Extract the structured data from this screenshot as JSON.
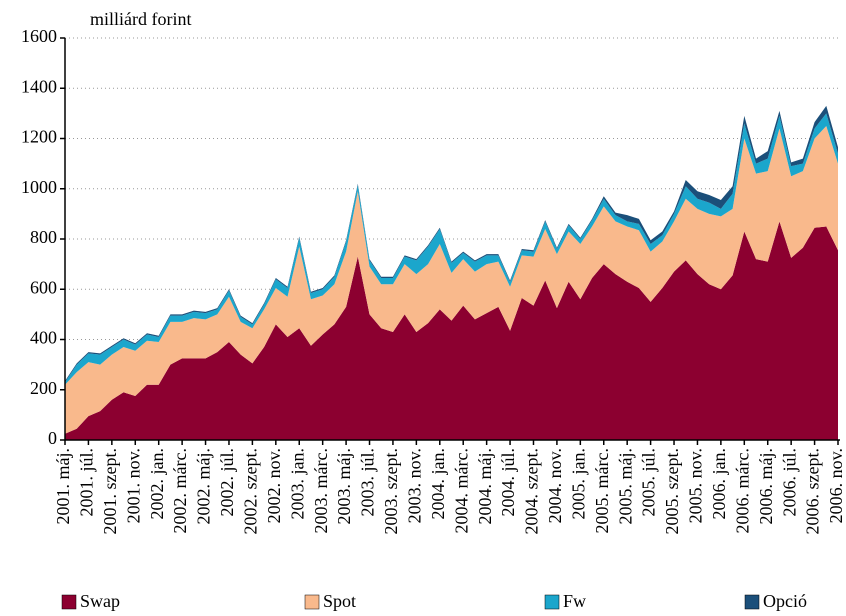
{
  "chart_data": {
    "type": "stacked_area",
    "y_axis_label": "milliárd forint",
    "categories": [
      "2001. máj.",
      null,
      "2001. júl.",
      null,
      "2001. szept.",
      null,
      "2001. nov.",
      null,
      "2002. jan.",
      null,
      "2002. márc.",
      null,
      "2002. máj.",
      null,
      "2002. júl.",
      null,
      "2002. szept.",
      null,
      "2002. nov.",
      null,
      "2003. jan.",
      null,
      "2003. márc.",
      null,
      "2003. máj.",
      null,
      "2003. júl.",
      null,
      "2003. szept.",
      null,
      "2003. nov.",
      null,
      "2004. jan.",
      null,
      "2004. márc.",
      null,
      "2004. máj.",
      null,
      "2004. júl.",
      null,
      "2004. szept.",
      null,
      "2004. nov.",
      null,
      "2005. jan.",
      null,
      "2005. márc.",
      null,
      "2005. máj.",
      null,
      "2005. júl.",
      null,
      "2005. szept.",
      null,
      "2005. nov.",
      null,
      "2006. jan.",
      null,
      "2006. márc.",
      null,
      "2006. máj.",
      null,
      "2006. júl.",
      null,
      "2006. szept.",
      null,
      "2006. nov."
    ],
    "series": [
      {
        "name": "Swap",
        "color": "#8c0030",
        "values": [
          25,
          45,
          95,
          115,
          160,
          190,
          175,
          220,
          220,
          300,
          325,
          325,
          325,
          350,
          390,
          340,
          305,
          370,
          460,
          410,
          445,
          375,
          420,
          460,
          530,
          730,
          500,
          445,
          430,
          500,
          430,
          465,
          520,
          475,
          535,
          480,
          505,
          530,
          435,
          565,
          535,
          635,
          525,
          630,
          560,
          645,
          700,
          660,
          630,
          605,
          550,
          605,
          670,
          715,
          660,
          620,
          600,
          655,
          830,
          720,
          710,
          870,
          725,
          765,
          845,
          850,
          755
        ]
      },
      {
        "name": "Spot",
        "color": "#f9b98c",
        "values": [
          195,
          225,
          215,
          185,
          180,
          180,
          180,
          175,
          170,
          170,
          145,
          160,
          155,
          150,
          180,
          130,
          140,
          150,
          145,
          160,
          325,
          185,
          155,
          160,
          220,
          260,
          190,
          175,
          190,
          200,
          230,
          235,
          260,
          190,
          185,
          190,
          195,
          180,
          175,
          170,
          195,
          205,
          215,
          200,
          220,
          205,
          230,
          210,
          220,
          230,
          200,
          185,
          200,
          245,
          260,
          280,
          290,
          265,
          370,
          340,
          360,
          370,
          325,
          305,
          355,
          400,
          345
        ]
      },
      {
        "name": "Fw",
        "color": "#1ba6cc",
        "values": [
          10,
          30,
          35,
          40,
          30,
          30,
          25,
          25,
          20,
          25,
          25,
          25,
          25,
          20,
          25,
          20,
          15,
          20,
          35,
          35,
          35,
          25,
          25,
          30,
          40,
          25,
          25,
          25,
          25,
          30,
          55,
          70,
          60,
          40,
          25,
          40,
          35,
          25,
          20,
          20,
          20,
          30,
          20,
          25,
          20,
          25,
          30,
          25,
          20,
          25,
          30,
          25,
          30,
          50,
          40,
          45,
          30,
          60,
          60,
          40,
          50,
          50,
          40,
          30,
          40,
          50,
          40
        ]
      },
      {
        "name": "Opció",
        "color": "#1b4f7a",
        "values": [
          5,
          5,
          5,
          5,
          5,
          5,
          5,
          5,
          5,
          5,
          5,
          5,
          5,
          5,
          5,
          5,
          5,
          5,
          5,
          5,
          5,
          5,
          5,
          5,
          5,
          5,
          5,
          5,
          5,
          5,
          5,
          5,
          5,
          5,
          5,
          5,
          5,
          5,
          5,
          5,
          5,
          5,
          5,
          5,
          5,
          5,
          10,
          10,
          25,
          20,
          15,
          15,
          10,
          25,
          30,
          30,
          35,
          30,
          30,
          20,
          30,
          20,
          15,
          20,
          25,
          30,
          25
        ]
      }
    ],
    "ylim": [
      0,
      1600
    ],
    "yticks": [
      0,
      200,
      400,
      600,
      800,
      1000,
      1200,
      1400,
      1600
    ],
    "grid": true
  }
}
